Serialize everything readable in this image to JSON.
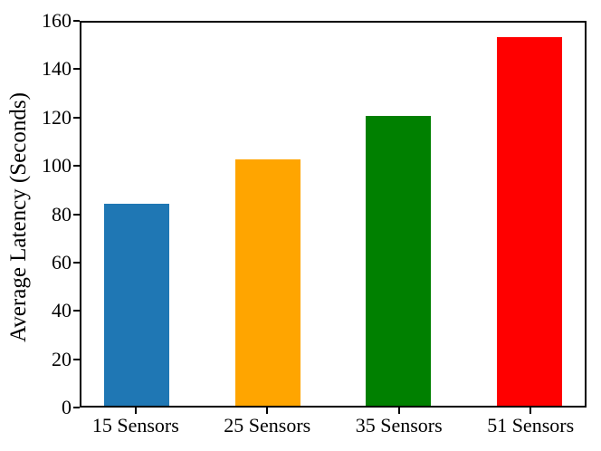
{
  "figure": {
    "background": "#ffffff",
    "spine_color": "#000000",
    "tick_color": "#000000",
    "text_color": "#000000"
  },
  "chart_data": {
    "type": "bar",
    "title": "",
    "xlabel": "",
    "ylabel": "Average Latency (Seconds)",
    "categories": [
      "15 Sensors",
      "25 Sensors",
      "35 Sensors",
      "51 Sensors"
    ],
    "values": [
      84.5,
      103,
      121,
      154
    ],
    "bar_colors": [
      "#1f77b4",
      "#ffa500",
      "#008000",
      "#ff0000"
    ],
    "ylim": [
      0,
      160
    ],
    "yticks": [
      0,
      20,
      40,
      60,
      80,
      100,
      120,
      140,
      160
    ],
    "bar_width_data_units": 0.5,
    "x_margin_frac": 0.05,
    "grid": false,
    "legend": "none",
    "tick_direction": "out"
  }
}
